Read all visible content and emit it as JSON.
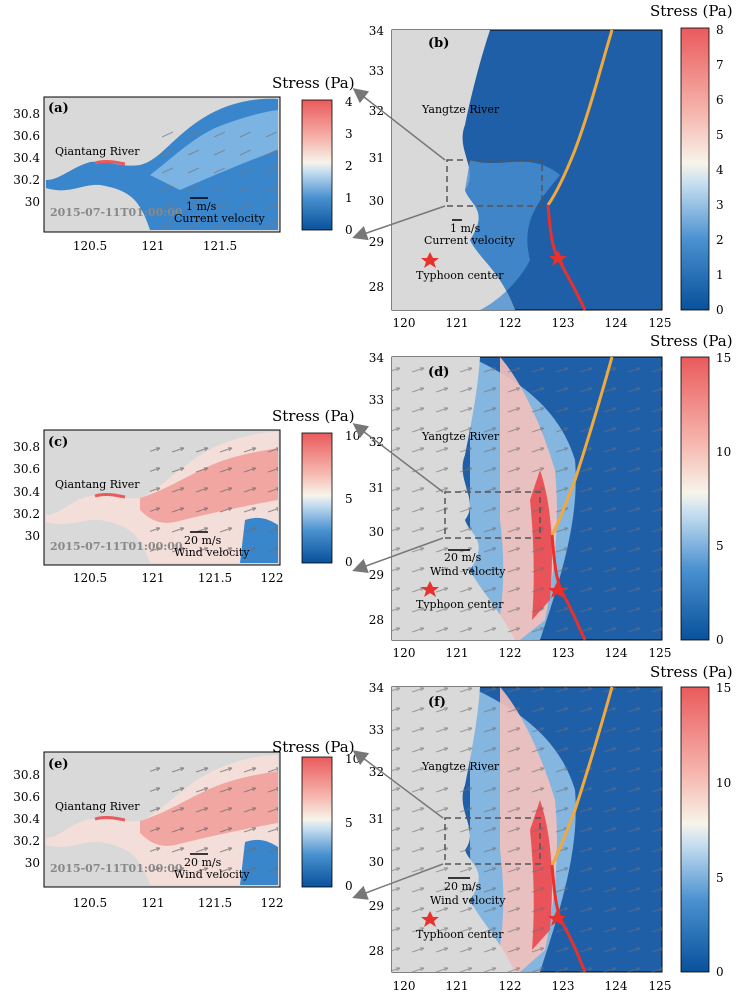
{
  "panels": [
    {
      "id": "a",
      "label": "(a)",
      "river": "Qiantang River",
      "timestamp": "2015-07-11T01:00:00",
      "scale_text": "1 m/s",
      "scale_caption": "Current velocity",
      "yticks": [
        "30.8",
        "30.6",
        "30.4",
        "30.2",
        "30"
      ],
      "xticks": [
        "120.5",
        "121",
        "121.5"
      ],
      "cbar_title": "Stress (Pa)",
      "cbar_ticks": [
        "4",
        "3",
        "2",
        "1",
        "0"
      ],
      "cbar_max": 4
    },
    {
      "id": "b",
      "label": "(b)",
      "river": "Yangtze River",
      "scale_text": "1 m/s",
      "scale_caption": "Current velocity",
      "typhoon_label": "Typhoon center",
      "yticks": [
        "34",
        "33",
        "32",
        "31",
        "30",
        "29",
        "28"
      ],
      "xticks": [
        "120",
        "121",
        "122",
        "123",
        "124",
        "125"
      ],
      "cbar_title": "Stress (Pa)",
      "cbar_ticks": [
        "8",
        "7",
        "6",
        "5",
        "4",
        "3",
        "2",
        "1",
        "0"
      ],
      "cbar_max": 8
    },
    {
      "id": "c",
      "label": "(c)",
      "river": "Qiantang River",
      "timestamp": "2015-07-11T01:00:00",
      "scale_text": "20 m/s",
      "scale_caption": "Wind velocity",
      "yticks": [
        "30.8",
        "30.6",
        "30.4",
        "30.2",
        "30"
      ],
      "xticks": [
        "120.5",
        "121",
        "121.5",
        "122"
      ],
      "cbar_title": "Stress (Pa)",
      "cbar_ticks": [
        "10",
        "5",
        "0"
      ],
      "cbar_max": 10
    },
    {
      "id": "d",
      "label": "(d)",
      "river": "Yangtze River",
      "scale_text": "20 m/s",
      "scale_caption": "Wind velocity",
      "typhoon_label": "Typhoon center",
      "yticks": [
        "34",
        "33",
        "32",
        "31",
        "30",
        "29",
        "28"
      ],
      "xticks": [
        "120",
        "121",
        "122",
        "123",
        "124",
        "125"
      ],
      "cbar_title": "Stress (Pa)",
      "cbar_ticks": [
        "15",
        "10",
        "5",
        "0"
      ],
      "cbar_max": 15
    },
    {
      "id": "e",
      "label": "(e)",
      "river": "Qiantang River",
      "timestamp": "2015-07-11T01:00:00",
      "scale_text": "20 m/s",
      "scale_caption": "Wind velocity",
      "yticks": [
        "30.8",
        "30.6",
        "30.4",
        "30.2",
        "30"
      ],
      "xticks": [
        "120.5",
        "121",
        "121.5",
        "122"
      ],
      "cbar_title": "Stress (Pa)",
      "cbar_ticks": [
        "10",
        "5",
        "0"
      ],
      "cbar_max": 10
    },
    {
      "id": "f",
      "label": "(f)",
      "river": "Yangtze River",
      "scale_text": "20 m/s",
      "scale_caption": "Wind velocity",
      "typhoon_label": "Typhoon center",
      "yticks": [
        "34",
        "33",
        "32",
        "31",
        "30",
        "29",
        "28"
      ],
      "xticks": [
        "120",
        "121",
        "122",
        "123",
        "124",
        "125"
      ],
      "cbar_title": "Stress (Pa)",
      "cbar_ticks": [
        "15",
        "10",
        "5",
        "0"
      ],
      "cbar_max": 15
    }
  ],
  "colors": {
    "land": "#d9d9d9",
    "ocean_dark": "#1f5fa8",
    "ocean_mid": "#4a8fd1",
    "high_stress": "#e8545a",
    "track_past": "#f2a93b",
    "track_future": "#e8302c",
    "typhoon": "#e8302c",
    "arrow": "#6e6e6e",
    "dash": "#555555"
  }
}
